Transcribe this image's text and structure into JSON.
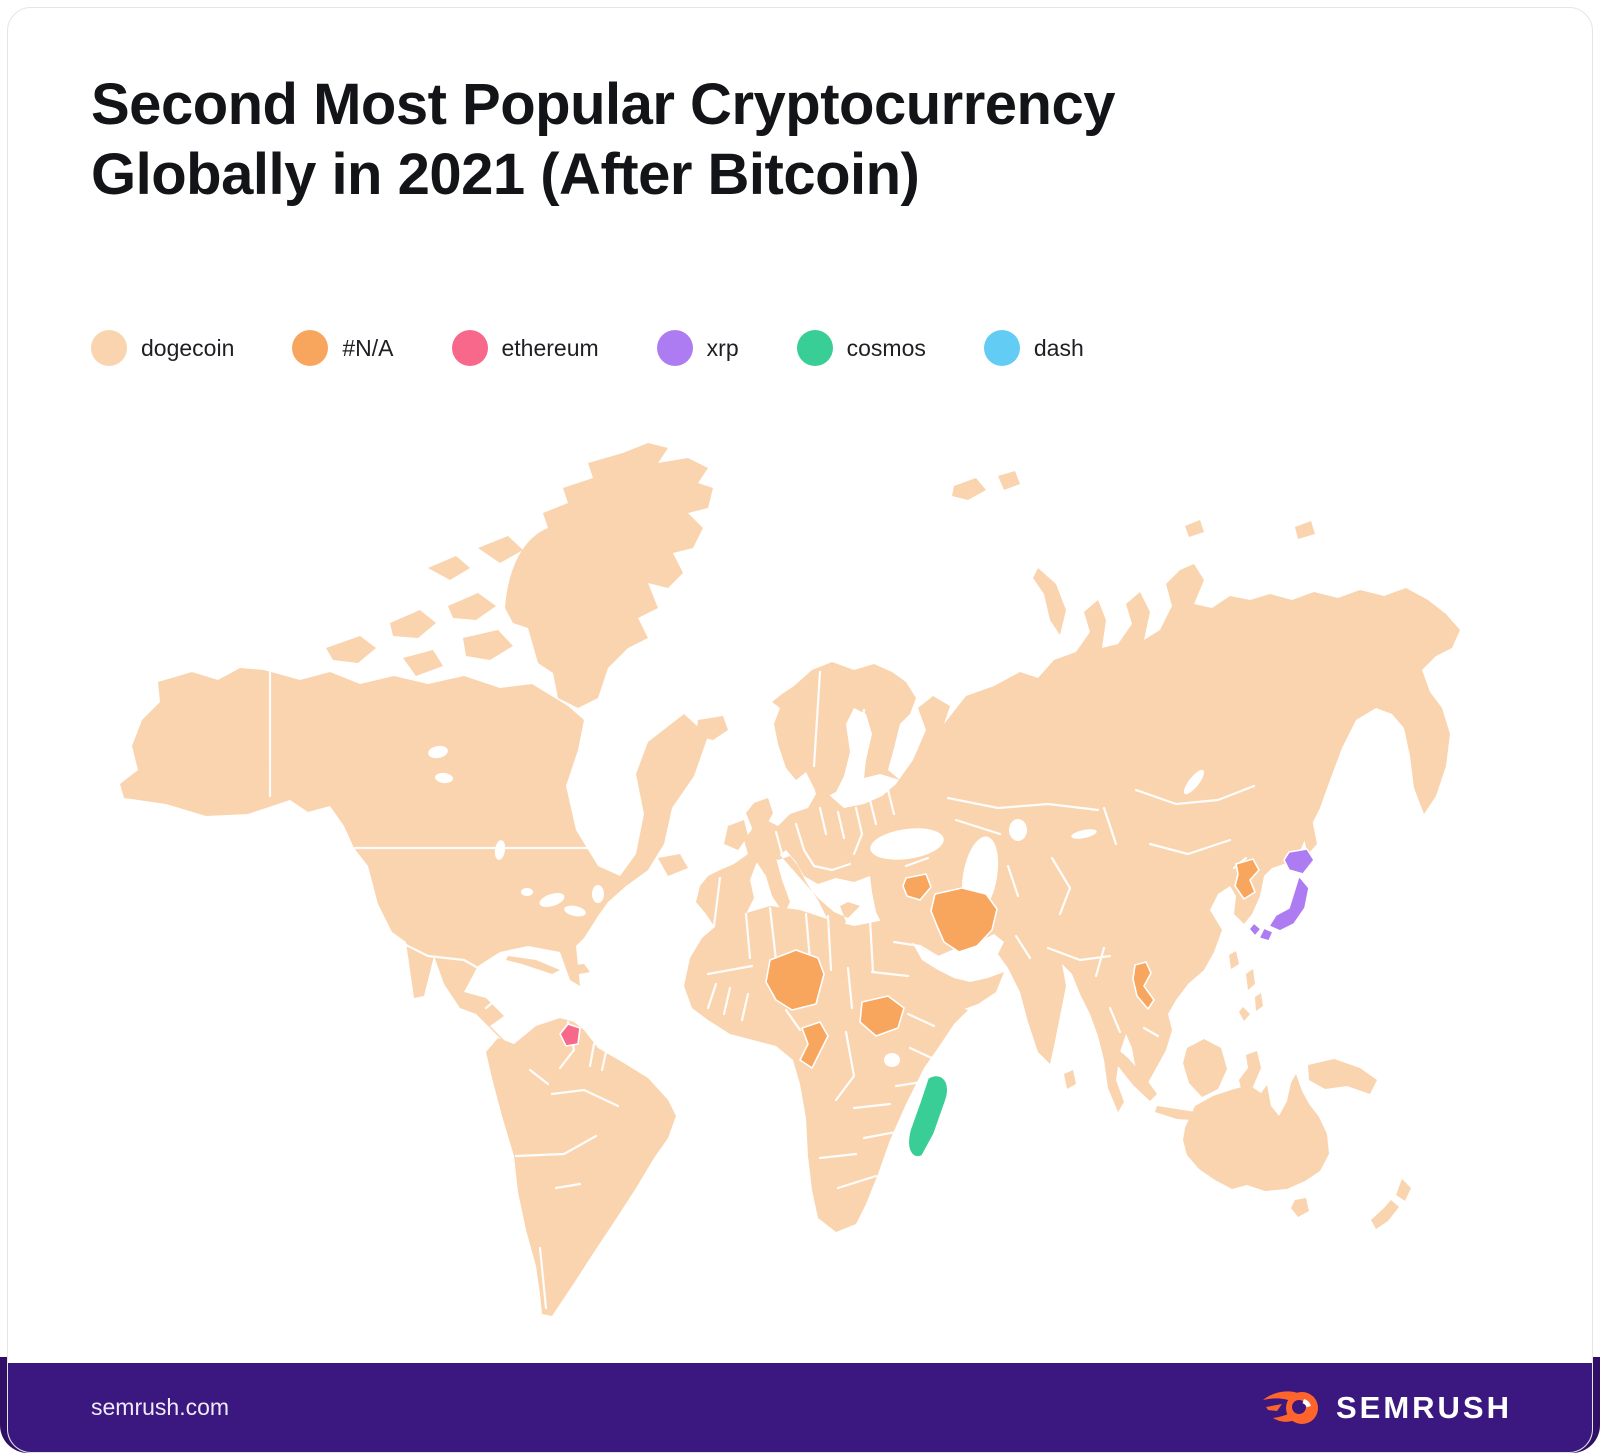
{
  "header": {
    "title_line1": "Second Most Popular Cryptocurrency",
    "title_line2": "Globally in 2021 (After Bitcoin)"
  },
  "legend": {
    "items": [
      {
        "id": "dogecoin",
        "label": "dogecoin",
        "color": "#F9D4AE"
      },
      {
        "id": "na",
        "label": "#N/A",
        "color": "#F8A55E"
      },
      {
        "id": "ethereum",
        "label": "ethereum",
        "color": "#F8688B"
      },
      {
        "id": "xrp",
        "label": "xrp",
        "color": "#AE7CF2"
      },
      {
        "id": "cosmos",
        "label": "cosmos",
        "color": "#38CE96"
      },
      {
        "id": "dash",
        "label": "dash",
        "color": "#63CCF4"
      }
    ]
  },
  "chart_data": {
    "type": "choropleth_map",
    "title": "Second Most Popular Cryptocurrency Globally in 2021 (After Bitcoin)",
    "region_scope": "world",
    "default_value": "dogecoin",
    "legend_entries": [
      "dogecoin",
      "#N/A",
      "ethereum",
      "xrp",
      "cosmos",
      "dash"
    ],
    "country_values": {
      "syria": "na",
      "iran": "na",
      "niger": "na",
      "south_sudan": "na",
      "republic_of_congo": "na",
      "north_korea": "na",
      "laos": "na",
      "french_guiana": "ethereum",
      "madagascar": "cosmos",
      "japan": "xrp"
    },
    "highlighted_countries": [
      {
        "country": "Syria",
        "second_most_popular": "#N/A"
      },
      {
        "country": "Iran",
        "second_most_popular": "#N/A"
      },
      {
        "country": "Niger",
        "second_most_popular": "#N/A"
      },
      {
        "country": "South Sudan",
        "second_most_popular": "#N/A"
      },
      {
        "country": "Republic of the Congo",
        "second_most_popular": "#N/A"
      },
      {
        "country": "North Korea",
        "second_most_popular": "#N/A"
      },
      {
        "country": "Laos",
        "second_most_popular": "#N/A"
      },
      {
        "country": "French Guiana",
        "second_most_popular": "ethereum"
      },
      {
        "country": "Madagascar",
        "second_most_popular": "cosmos"
      },
      {
        "country": "Japan",
        "second_most_popular": "xrp"
      }
    ],
    "all_other_countries": "dogecoin"
  },
  "footer": {
    "site": "semrush.com",
    "brand": "SEMRUSH",
    "background": "#3B1880",
    "backdrop": "#2F1066",
    "accent": "#FF642D"
  }
}
